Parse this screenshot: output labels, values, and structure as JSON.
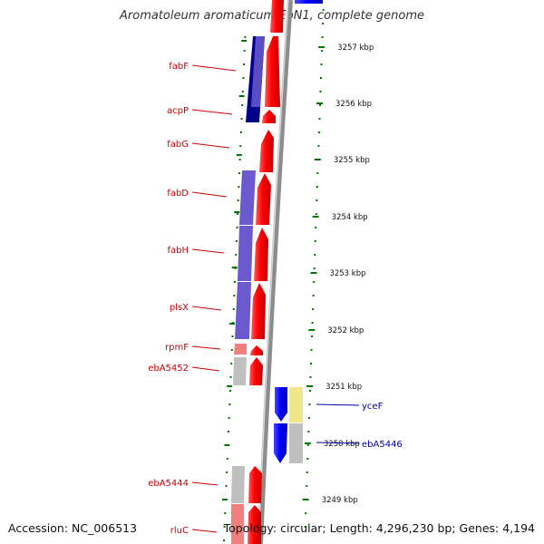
{
  "title": "Aromatoleum aromaticum EbN1, complete genome",
  "accession_label": "Accession: NC_006513",
  "summary_label": "Topology: circular; Length: 4,296,230 bp; Genes: 4,194",
  "ticks": [
    {
      "label": "3257 kbp"
    },
    {
      "label": "3256 kbp"
    },
    {
      "label": "3255 kbp"
    },
    {
      "label": "3254 kbp"
    },
    {
      "label": "3253 kbp"
    },
    {
      "label": "3252 kbp"
    },
    {
      "label": "3251 kbp"
    },
    {
      "label": "3250 kbp"
    },
    {
      "label": "3249 kbp"
    }
  ],
  "left_genes": [
    {
      "name": "fabF"
    },
    {
      "name": "acpP"
    },
    {
      "name": "fabG"
    },
    {
      "name": "fabD"
    },
    {
      "name": "fabH"
    },
    {
      "name": "plsX"
    },
    {
      "name": "rpmF"
    },
    {
      "name": "ebA5452"
    },
    {
      "name": "ebA5444"
    },
    {
      "name": "rluC"
    }
  ],
  "right_genes": [
    {
      "name": "yceF"
    },
    {
      "name": "ebA5446"
    }
  ],
  "colors": {
    "reverse_strand": "#ff0000",
    "forward_strand": "#0000ff",
    "cog_purple": "#6a5acd",
    "cog_navy": "#00008b",
    "cog_gray": "#c0c0c0",
    "cog_pink": "#f08080",
    "cog_yellow": "#f0e68c",
    "tick_mark": "#007700",
    "left_label": "#cc0000",
    "right_label": "#0000aa",
    "backbone": "#909090"
  }
}
